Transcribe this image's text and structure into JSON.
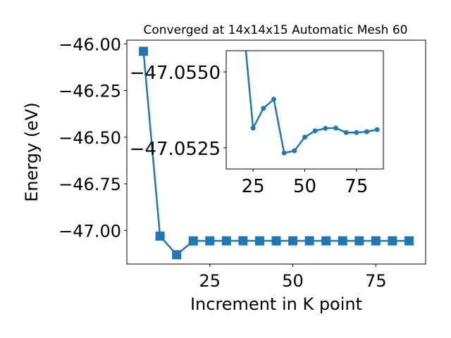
{
  "chart_data": [
    {
      "type": "line",
      "title": "Converged at 14x14x15 Automatic Mesh 60",
      "xlabel": "Increment in K point",
      "ylabel": "Energy (eV)",
      "xlim": [
        0,
        90
      ],
      "ylim": [
        -47.18,
        -45.98
      ],
      "xticks": [
        25,
        50,
        75
      ],
      "xtick_labels": [
        "25",
        "50",
        "75"
      ],
      "yticks": [
        -46.0,
        -46.25,
        -46.5,
        -46.75,
        -47.0
      ],
      "ytick_labels": [
        "−46.00",
        "−46.25",
        "−46.50",
        "−46.75",
        "−47.00"
      ],
      "marker": "square",
      "color": "#1f77b4",
      "series": [
        {
          "x": [
            5,
            10,
            15,
            20,
            25,
            30,
            35,
            40,
            45,
            50,
            55,
            60,
            65,
            70,
            75,
            80,
            85
          ],
          "y": [
            -46.04,
            -47.03,
            -47.13,
            -47.056,
            -47.0555,
            -47.0554,
            -47.0553,
            -47.0556,
            -47.0556,
            -47.0555,
            -47.0554,
            -47.0554,
            -47.0554,
            -47.0555,
            -47.0555,
            -47.0555,
            -47.0555
          ]
        }
      ]
    },
    {
      "type": "line",
      "xlim": [
        12,
        88
      ],
      "ylim": [
        -47.0518,
        -47.0557
      ],
      "xticks": [
        25,
        50,
        75
      ],
      "xtick_labels": [
        "25",
        "50",
        "75"
      ],
      "yticks": [
        -47.055,
        -47.0525
      ],
      "ytick_labels": [
        "−47.0550",
        "−47.0525"
      ],
      "marker": "circle",
      "color": "#1f77b4",
      "series": [
        {
          "x": [
            20,
            25,
            30,
            35,
            40,
            45,
            50,
            55,
            60,
            65,
            70,
            75,
            80,
            85
          ],
          "y": [
            -47.0568,
            -47.05315,
            -47.0538,
            -47.0541,
            -47.05233,
            -47.0524,
            -47.05285,
            -47.05306,
            -47.05314,
            -47.05315,
            -47.053,
            -47.053,
            -47.05303,
            -47.0531
          ]
        }
      ]
    }
  ]
}
